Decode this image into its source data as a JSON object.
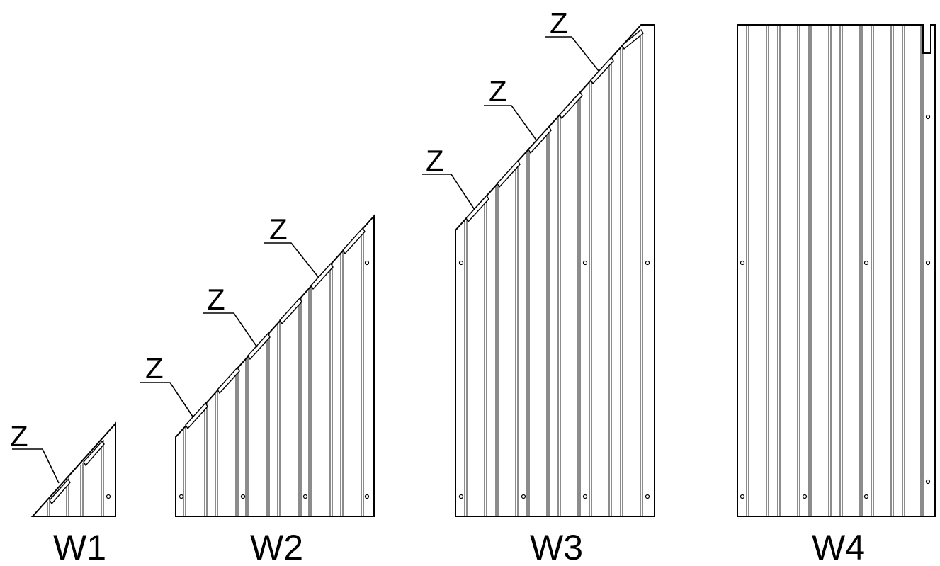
{
  "panels": [
    {
      "id": "W1",
      "label": "W1"
    },
    {
      "id": "W2",
      "label": "W2"
    },
    {
      "id": "W3",
      "label": "W3"
    },
    {
      "id": "W4",
      "label": "W4"
    }
  ],
  "callout_label": "Z",
  "colors": {
    "line": "#000000",
    "background": "#ffffff"
  }
}
